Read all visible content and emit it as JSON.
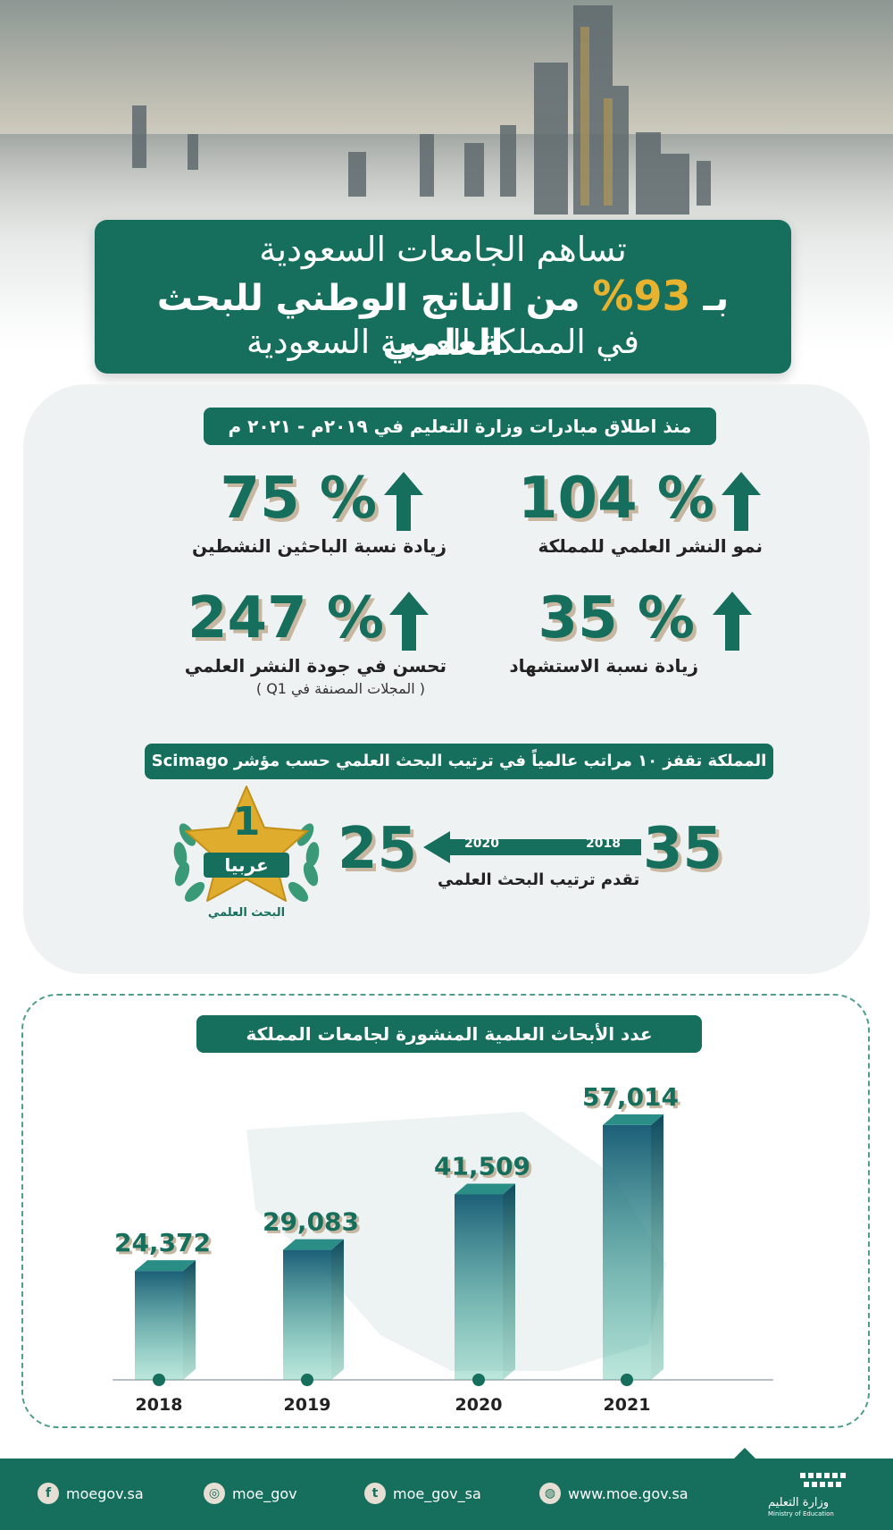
{
  "header": {
    "title_line1": "تساهم الجامعات السعودية",
    "title_prefix": "بـ",
    "title_percent": "93%",
    "title_line2_rest": "من الناتج الوطني للبحث العلمي",
    "title_line3": "في المملكة العربية السعودية"
  },
  "since_label": "منذ اطلاق مبادرات وزارة التعليم في ٢٠١٩م - ٢٠٢١ م",
  "stats": [
    {
      "value": "104 %",
      "label": "نمو النشر العلمي للمملكة",
      "sub": ""
    },
    {
      "value": "75 %",
      "label": "زيادة نسبة الباحثين النشطين",
      "sub": ""
    },
    {
      "value": "35 %",
      "label": "زيادة نسبة الاستشهاد",
      "sub": ""
    },
    {
      "value": "247 %",
      "label": "تحسن في جودة النشر العلمي",
      "sub": "( المجلات المصنفة في Q1 )"
    }
  ],
  "ranking": {
    "banner": "المملكة تقفز ١٠ مراتب عالمياً في ترتيب البحث العلمي حسب مؤشر Scimago",
    "from_rank": "35",
    "to_rank": "25",
    "from_year": "2018",
    "to_year": "2020",
    "caption": "تقدم ترتيب البحث العلمي",
    "badge_number": "1",
    "badge_text": "عربيا",
    "badge_sub": "البحث العلمي"
  },
  "chart_data": {
    "type": "bar",
    "title": "عدد الأبحاث العلمية المنشورة لجامعات المملكة",
    "categories": [
      "2018",
      "2019",
      "2020",
      "2021"
    ],
    "values": [
      24372,
      29083,
      41509,
      57014
    ],
    "value_labels": [
      "24,372",
      "29,083",
      "41,509",
      "57,014"
    ],
    "xlabel": "",
    "ylabel": "",
    "grid": false,
    "legend": "none"
  },
  "footer": {
    "social": [
      {
        "icon": "facebook-icon",
        "glyph": "f",
        "handle": "moegov.sa"
      },
      {
        "icon": "instagram-icon",
        "glyph": "◎",
        "handle": "moe_gov"
      },
      {
        "icon": "twitter-icon",
        "glyph": "t",
        "handle": "moe_gov_sa"
      },
      {
        "icon": "globe-icon",
        "glyph": "◍",
        "handle": "www.moe.gov.sa"
      }
    ],
    "ministry_ar": "وزارة التعليم",
    "ministry_en": "Ministry of Education"
  },
  "colors": {
    "primary": "#166e5c",
    "gold": "#e8b430",
    "shadow": "#c8b7a0",
    "bar_dark": "#1c5f78",
    "bar_light": "#3fb89a"
  }
}
